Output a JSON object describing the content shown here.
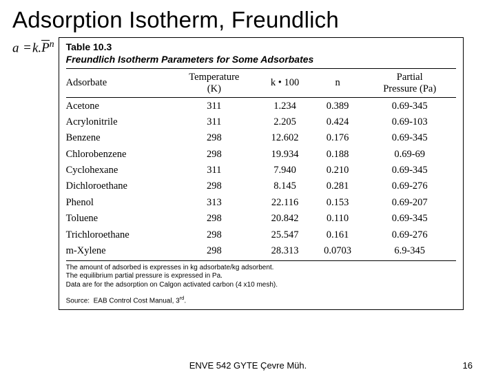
{
  "title": "Adsorption Isotherm, Freundlich",
  "formula": {
    "lhs": "a",
    "eq": "=",
    "k": "k.",
    "Pvar": "P",
    "exp": "n"
  },
  "table": {
    "label": "Table 10.3",
    "caption": "Freundlich Isotherm Parameters for Some Adsorbates",
    "columns": {
      "c0": "Adsorbate",
      "c1a": "Temperature",
      "c1b": "(K)",
      "c2": "k • 100",
      "c3": "n",
      "c4a": "Partial",
      "c4b": "Pressure  (Pa)"
    },
    "rows": [
      {
        "adsorbate": "Acetone",
        "tempK": "311",
        "k100": "1.234",
        "n": "0.389",
        "pp": "0.69-345"
      },
      {
        "adsorbate": "Acrylonitrile",
        "tempK": "311",
        "k100": "2.205",
        "n": "0.424",
        "pp": "0.69-103"
      },
      {
        "adsorbate": "Benzene",
        "tempK": "298",
        "k100": "12.602",
        "n": "0.176",
        "pp": "0.69-345"
      },
      {
        "adsorbate": "Chlorobenzene",
        "tempK": "298",
        "k100": "19.934",
        "n": "0.188",
        "pp": "0.69-69"
      },
      {
        "adsorbate": "Cyclohexane",
        "tempK": "311",
        "k100": "7.940",
        "n": "0.210",
        "pp": "0.69-345"
      },
      {
        "adsorbate": "Dichloroethane",
        "tempK": "298",
        "k100": "8.145",
        "n": "0.281",
        "pp": "0.69-276"
      },
      {
        "adsorbate": "Phenol",
        "tempK": "313",
        "k100": "22.116",
        "n": "0.153",
        "pp": "0.69-207"
      },
      {
        "adsorbate": "Toluene",
        "tempK": "298",
        "k100": "20.842",
        "n": "0.110",
        "pp": "0.69-345"
      },
      {
        "adsorbate": "Trichloroethane",
        "tempK": "298",
        "k100": "25.547",
        "n": "0.161",
        "pp": "0.69-276"
      },
      {
        "adsorbate": "m-Xylene",
        "tempK": "298",
        "k100": "28.313",
        "n": "0.0703",
        "pp": "6.9-345"
      }
    ],
    "footnotes": [
      "The amount of adsorbed is expresses in kg adsorbate/kg adsorbent.",
      "The equilibrium partial pressure is expressed in Pa.",
      "Data are for the adsorption on Calgon activated carbon (4 x10 mesh)."
    ],
    "source": "Source:  EAB Control Cost Manual, 3rd."
  },
  "footer": {
    "center": "ENVE 542   GYTE Çevre Müh.",
    "page": "16"
  }
}
